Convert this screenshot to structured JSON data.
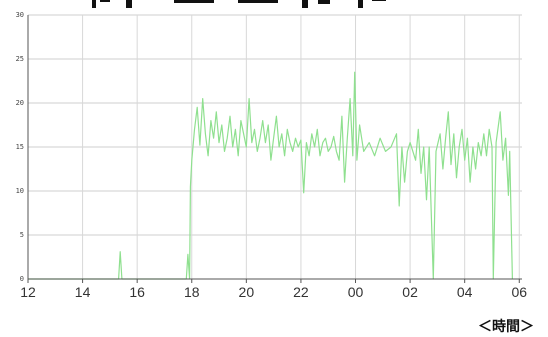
{
  "chart_data": {
    "type": "line",
    "title": "",
    "xlabel": "＜時間＞",
    "ylabel": "",
    "x_tick_labels": [
      "12",
      "14",
      "16",
      "18",
      "20",
      "22",
      "00",
      "02",
      "04",
      "06"
    ],
    "y_ticks": [
      0,
      5,
      10,
      15,
      20,
      25,
      30
    ],
    "ylim": [
      0,
      30
    ],
    "x_range_hours": [
      12,
      30.1
    ],
    "grid": true,
    "legend": "none",
    "series": [
      {
        "color": "#8fe08f",
        "points": [
          [
            12.0,
            0
          ],
          [
            15.32,
            0
          ],
          [
            15.38,
            3.1
          ],
          [
            15.44,
            0
          ],
          [
            17.8,
            0
          ],
          [
            17.86,
            2.8
          ],
          [
            17.92,
            0
          ],
          [
            17.95,
            10.5
          ],
          [
            18.0,
            13.5
          ],
          [
            18.1,
            17
          ],
          [
            18.2,
            19.5
          ],
          [
            18.3,
            15.2
          ],
          [
            18.4,
            20.5
          ],
          [
            18.5,
            16.5
          ],
          [
            18.6,
            14
          ],
          [
            18.7,
            18
          ],
          [
            18.8,
            16
          ],
          [
            18.9,
            19
          ],
          [
            19.0,
            15.5
          ],
          [
            19.1,
            17.5
          ],
          [
            19.2,
            14.5
          ],
          [
            19.3,
            16
          ],
          [
            19.4,
            18.5
          ],
          [
            19.5,
            15
          ],
          [
            19.6,
            17
          ],
          [
            19.7,
            14
          ],
          [
            19.8,
            18
          ],
          [
            19.9,
            16.5
          ],
          [
            20.0,
            15
          ],
          [
            20.1,
            20.5
          ],
          [
            20.2,
            15.5
          ],
          [
            20.3,
            17
          ],
          [
            20.4,
            14.5
          ],
          [
            20.5,
            16
          ],
          [
            20.6,
            18
          ],
          [
            20.7,
            15.5
          ],
          [
            20.8,
            17.5
          ],
          [
            20.9,
            13.5
          ],
          [
            21.0,
            16
          ],
          [
            21.1,
            18.5
          ],
          [
            21.2,
            15
          ],
          [
            21.3,
            16.5
          ],
          [
            21.4,
            14
          ],
          [
            21.5,
            17
          ],
          [
            21.6,
            15.5
          ],
          [
            21.7,
            14.5
          ],
          [
            21.8,
            16
          ],
          [
            21.9,
            15
          ],
          [
            22.0,
            15.8
          ],
          [
            22.1,
            9.8
          ],
          [
            22.2,
            15.5
          ],
          [
            22.3,
            14
          ],
          [
            22.4,
            16.5
          ],
          [
            22.5,
            15
          ],
          [
            22.6,
            17
          ],
          [
            22.7,
            14
          ],
          [
            22.8,
            15.5
          ],
          [
            22.9,
            16
          ],
          [
            23.0,
            14.5
          ],
          [
            23.1,
            15
          ],
          [
            23.2,
            16.2
          ],
          [
            23.3,
            14.5
          ],
          [
            23.4,
            13.5
          ],
          [
            23.5,
            18.5
          ],
          [
            23.6,
            11
          ],
          [
            23.7,
            16
          ],
          [
            23.8,
            20.5
          ],
          [
            23.9,
            14
          ],
          [
            23.97,
            23.5
          ],
          [
            24.05,
            13.5
          ],
          [
            24.15,
            17.5
          ],
          [
            24.3,
            14.5
          ],
          [
            24.5,
            15.5
          ],
          [
            24.7,
            14
          ],
          [
            24.9,
            16
          ],
          [
            25.1,
            14.5
          ],
          [
            25.3,
            15
          ],
          [
            25.5,
            16.5
          ],
          [
            25.6,
            8.3
          ],
          [
            25.7,
            15
          ],
          [
            25.8,
            11
          ],
          [
            25.9,
            14.5
          ],
          [
            26.0,
            15.5
          ],
          [
            26.2,
            13.5
          ],
          [
            26.3,
            17
          ],
          [
            26.4,
            12
          ],
          [
            26.5,
            15
          ],
          [
            26.6,
            9
          ],
          [
            26.7,
            15
          ],
          [
            26.85,
            0
          ],
          [
            26.95,
            14.5
          ],
          [
            27.1,
            16.5
          ],
          [
            27.2,
            12.5
          ],
          [
            27.3,
            16
          ],
          [
            27.4,
            19
          ],
          [
            27.5,
            13
          ],
          [
            27.6,
            16.5
          ],
          [
            27.7,
            11.5
          ],
          [
            27.8,
            15
          ],
          [
            27.9,
            17
          ],
          [
            28.0,
            13.5
          ],
          [
            28.1,
            16
          ],
          [
            28.2,
            11
          ],
          [
            28.3,
            15
          ],
          [
            28.4,
            12.5
          ],
          [
            28.5,
            15.5
          ],
          [
            28.6,
            14
          ],
          [
            28.7,
            16.5
          ],
          [
            28.8,
            14
          ],
          [
            28.9,
            17
          ],
          [
            29.0,
            15
          ],
          [
            29.05,
            0
          ],
          [
            29.15,
            15.5
          ],
          [
            29.3,
            19
          ],
          [
            29.4,
            13.5
          ],
          [
            29.5,
            16
          ],
          [
            29.6,
            9.5
          ],
          [
            29.65,
            14.5
          ],
          [
            29.75,
            0
          ]
        ]
      }
    ]
  },
  "page": {
    "xunit_label": "＜時間＞"
  }
}
